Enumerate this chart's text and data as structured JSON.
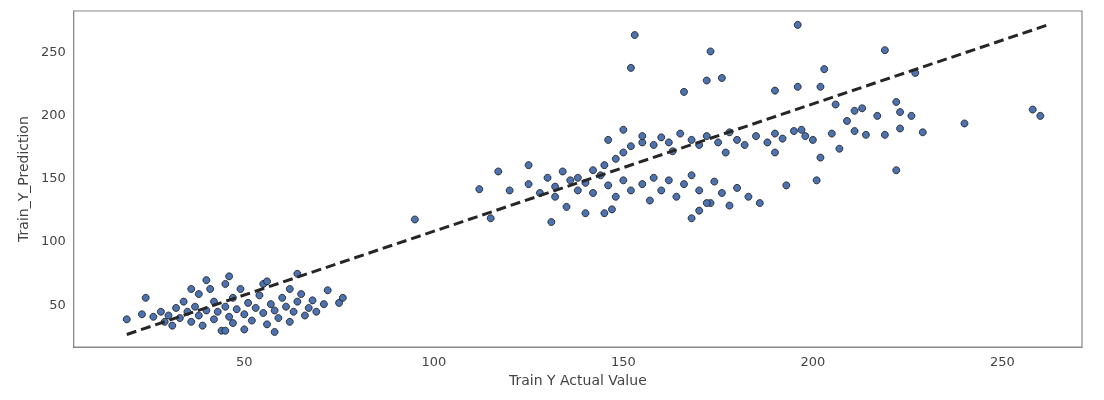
{
  "chart_data": {
    "type": "scatter",
    "xlabel": "Train Y Actual Value",
    "ylabel": "Train_Y_Prediction",
    "xlim": [
      5,
      271
    ],
    "ylim": [
      16,
      282
    ],
    "xticks": [
      50,
      100,
      150,
      200,
      250
    ],
    "yticks": [
      50,
      100,
      150,
      200,
      250
    ],
    "grid": false,
    "marker": "circle",
    "series": [
      {
        "color": "#4c72b0",
        "x": [
          19,
          23,
          24,
          26,
          28,
          29,
          30,
          31,
          32,
          33,
          34,
          35,
          36,
          37,
          38,
          38,
          39,
          40,
          41,
          42,
          42,
          43,
          44,
          45,
          45,
          46,
          47,
          47,
          48,
          49,
          50,
          50,
          51,
          52,
          53,
          54,
          55,
          55,
          56,
          57,
          58,
          59,
          60,
          61,
          62,
          62,
          63,
          64,
          65,
          66,
          67,
          68,
          69,
          71,
          72,
          75,
          76,
          46,
          45,
          40,
          36,
          56,
          64,
          58,
          95,
          153,
          152,
          196,
          173,
          219,
          227,
          203,
          172,
          176,
          166,
          190,
          196,
          202,
          258,
          260,
          240,
          229,
          222,
          201,
          193,
          168,
          170,
          173,
          145,
          131,
          115,
          112,
          117,
          222,
          223,
          223,
          219,
          226,
          213,
          217,
          211,
          207,
          202,
          206,
          209,
          211,
          214,
          205,
          138,
          142,
          145,
          148,
          150,
          152,
          155,
          158,
          160,
          162,
          165,
          168,
          170,
          172,
          175,
          178,
          180,
          182,
          185,
          188,
          190,
          192,
          195,
          198,
          200,
          146,
          150,
          155,
          163,
          177,
          190,
          197,
          120,
          125,
          128,
          130,
          132,
          134,
          136,
          138,
          140,
          142,
          144,
          146,
          148,
          150,
          152,
          155,
          157,
          158,
          160,
          162,
          164,
          166,
          168,
          170,
          172,
          174,
          176,
          178,
          180,
          183,
          186,
          147,
          135,
          140,
          125,
          132
        ],
        "values": [
          38,
          42,
          55,
          40,
          44,
          36,
          41,
          33,
          47,
          39,
          52,
          44,
          36,
          48,
          41,
          58,
          33,
          45,
          62,
          38,
          52,
          44,
          29,
          48,
          66,
          40,
          55,
          35,
          46,
          62,
          42,
          30,
          51,
          37,
          47,
          57,
          43,
          66,
          34,
          50,
          45,
          39,
          55,
          48,
          62,
          36,
          44,
          52,
          58,
          41,
          47,
          53,
          44,
          50,
          61,
          51,
          55,
          72,
          29,
          69,
          62,
          68,
          74,
          28,
          117,
          263,
          237,
          271,
          250,
          251,
          233,
          236,
          227,
          229,
          218,
          219,
          222,
          222,
          204,
          199,
          193,
          186,
          156,
          148,
          144,
          118,
          124,
          130,
          122,
          115,
          118,
          141,
          155,
          210,
          202,
          189,
          184,
          199,
          205,
          199,
          203,
          173,
          166,
          208,
          195,
          187,
          184,
          185,
          150,
          156,
          160,
          165,
          170,
          175,
          178,
          176,
          182,
          178,
          185,
          180,
          176,
          183,
          178,
          186,
          180,
          176,
          183,
          178,
          185,
          181,
          187,
          183,
          180,
          180,
          188,
          183,
          171,
          170,
          170,
          188,
          140,
          145,
          138,
          150,
          143,
          155,
          148,
          140,
          146,
          138,
          152,
          144,
          135,
          148,
          140,
          145,
          132,
          150,
          140,
          148,
          135,
          145,
          152,
          140,
          130,
          147,
          138,
          128,
          142,
          135,
          130,
          125,
          127,
          122,
          160,
          135
        ]
      },
      {
        "type": "line",
        "color": "#262626",
        "line_style": "dashed",
        "marker": "none",
        "x": [
          19,
          262
        ],
        "values": [
          26,
          271
        ]
      }
    ]
  }
}
